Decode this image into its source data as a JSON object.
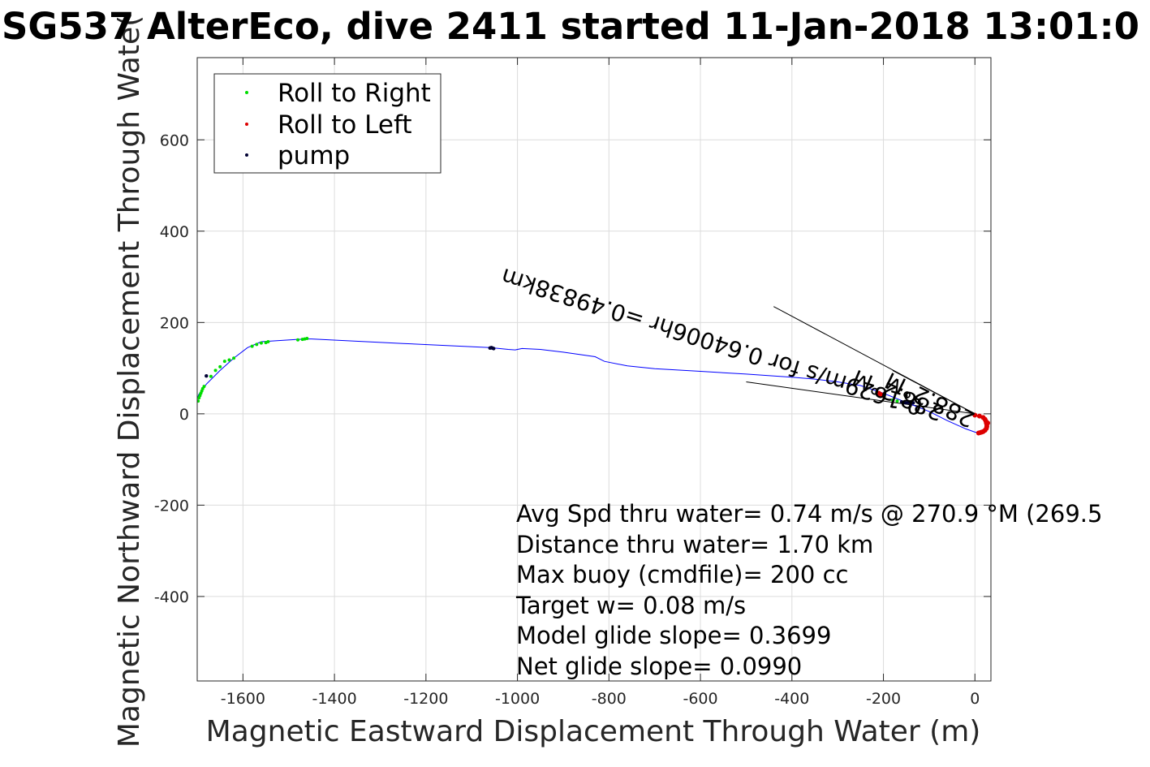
{
  "chart_data": {
    "type": "line",
    "title": "SG537 AlterEco, dive 2411 started 11-Jan-2018 13:01:0",
    "xlabel": "Magnetic Eastward Displacement Through Water (m)",
    "ylabel": "Magnetic Northward Displacement Through Wate(",
    "xlim": [
      -1700,
      35
    ],
    "ylim": [
      -585,
      780
    ],
    "xticks": [
      -1600,
      -1400,
      -1200,
      -1000,
      -800,
      -600,
      -400,
      -200,
      0
    ],
    "yticks": [
      -400,
      -200,
      0,
      200,
      400,
      600
    ],
    "grid": true,
    "legend": {
      "placement": "top-left",
      "entries": [
        {
          "label": "Roll to Right",
          "color": "#00dd00"
        },
        {
          "label": "Roll to Left",
          "color": "#dd0000"
        },
        {
          "label": "pump",
          "color": "#000033"
        }
      ]
    },
    "track": {
      "color": "#0000ff",
      "x": [
        28,
        25,
        15,
        0,
        -20,
        -60,
        -100,
        -150,
        -200,
        -250,
        -300,
        -350,
        -400,
        -500,
        -600,
        -700,
        -760,
        -810,
        -830,
        -900,
        -950,
        -990,
        -1005,
        -1020,
        -1060,
        -1250,
        -1450,
        -1480,
        -1560,
        -1590,
        -1620,
        -1650,
        -1680,
        -1697,
        -1700,
        -1698
      ],
      "y": [
        -20,
        -35,
        -42,
        -40,
        -33,
        -15,
        5,
        25,
        45,
        62,
        70,
        76,
        80,
        87,
        93,
        99,
        105,
        115,
        125,
        135,
        141,
        143,
        140,
        141,
        145,
        154,
        164,
        163,
        158,
        145,
        122,
        95,
        65,
        42,
        32,
        25
      ]
    },
    "roll_right": {
      "color": "#00dd00",
      "x": [
        -1698,
        -1696,
        -1694,
        -1692,
        -1690,
        -1688,
        -1685,
        -1670,
        -1660,
        -1650,
        -1640,
        -1630,
        -1620,
        -1580,
        -1570,
        -1560,
        -1550,
        -1545,
        -1480,
        -1470,
        -1465,
        -1460,
        -180,
        -170
      ],
      "y": [
        28,
        35,
        40,
        45,
        50,
        55,
        60,
        82,
        95,
        103,
        115,
        118,
        122,
        148,
        152,
        155,
        156,
        158,
        162,
        163,
        164,
        165,
        30,
        28
      ]
    },
    "roll_left": {
      "color": "#dd0000",
      "x": [
        -210,
        -205,
        -200,
        0,
        10,
        18,
        22,
        24,
        25,
        26,
        26,
        25,
        22,
        18,
        12,
        8,
        15,
        28
      ],
      "y": [
        45,
        42,
        40,
        -3,
        -5,
        -8,
        -12,
        -16,
        -20,
        -24,
        -28,
        -32,
        -36,
        -39,
        -41,
        -42,
        -40,
        -20
      ],
      "marker_size": "large"
    },
    "pump": {
      "color": "#000033",
      "x": [
        -1060,
        -1057,
        -1055,
        -1052,
        -1680,
        -160,
        -155,
        -150,
        -145,
        -140,
        -135
      ],
      "y": [
        144,
        145,
        144,
        143,
        83,
        26,
        25,
        24,
        25,
        26,
        24
      ]
    },
    "vectors": [
      {
        "x": [
          -440,
          0
        ],
        "y": [
          235,
          0
        ]
      },
      {
        "x": [
          -180,
          0
        ],
        "y": [
          95,
          0
        ]
      },
      {
        "x": [
          -500,
          0
        ],
        "y": [
          70,
          0
        ]
      }
    ],
    "rotated_annotations": [
      "0.1629m/s for 0.64006hr =0.49838km",
      "288.2°M",
      "288.2°M"
    ],
    "stats": [
      "Avg Spd thru water=  0.74 m/s @ 270.9 °M (269.5",
      "Distance thru water=  1.70 km",
      "Max buoy (cmdfile)= 200 cc",
      "Target w= 0.08 m/s",
      "Model glide slope= 0.3699",
      "Net glide slope= 0.0990"
    ]
  }
}
